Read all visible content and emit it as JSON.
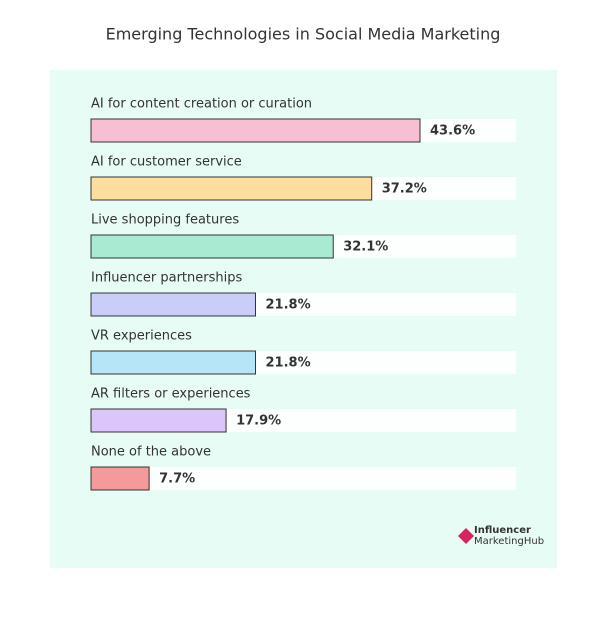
{
  "chart_data": {
    "type": "bar",
    "orientation": "horizontal",
    "title": "Emerging Technologies in Social Media Marketing",
    "categories": [
      "AI for content creation or curation",
      "AI for customer service",
      "Live shopping features",
      "Influencer partnerships",
      "VR experiences",
      "AR filters or experiences",
      "None of the above"
    ],
    "values": [
      43.6,
      37.2,
      32.1,
      21.8,
      21.8,
      17.9,
      7.7
    ],
    "value_labels": [
      "43.6%",
      "37.2%",
      "32.1%",
      "21.8%",
      "21.8%",
      "17.9%",
      "7.7%"
    ],
    "colors": [
      "#f7bfd3",
      "#fddea0",
      "#a8ead2",
      "#c9cdf8",
      "#b5e5f7",
      "#dcc6f9",
      "#f49a9a"
    ]
  },
  "logo": {
    "line1": "Influencer",
    "line2": "MarketingHub"
  }
}
